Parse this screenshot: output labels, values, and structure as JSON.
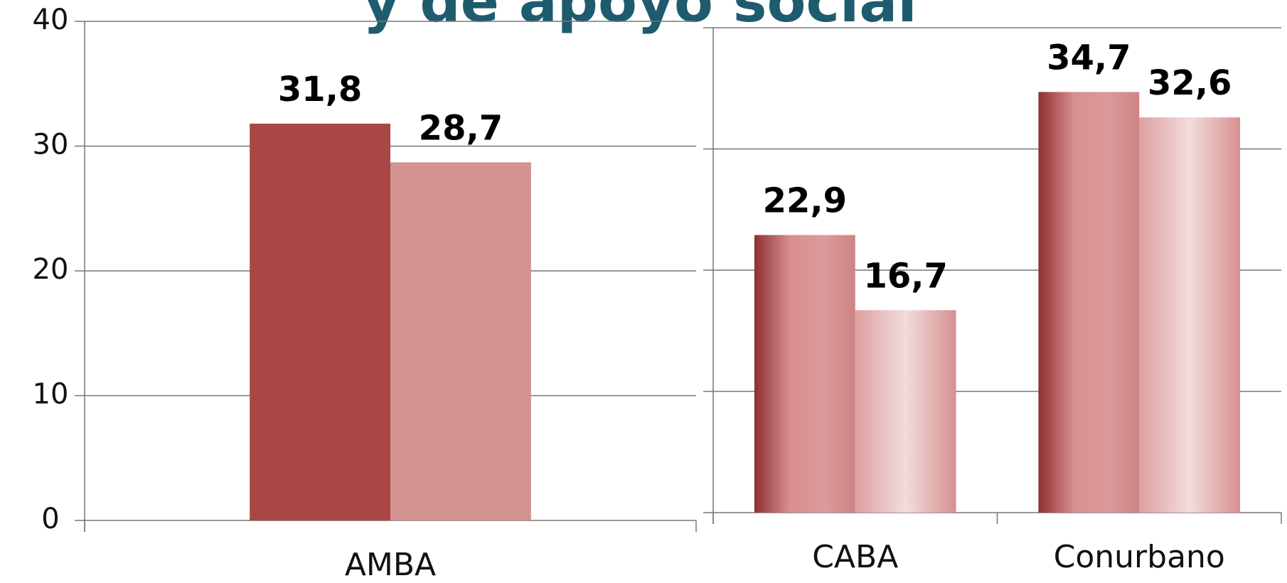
{
  "title": "y de apoyo social",
  "chart_data": [
    {
      "type": "bar",
      "categories": [
        "AMBA"
      ],
      "series": [
        {
          "color": "#a84744",
          "values": [
            31.8
          ],
          "value_labels": [
            "31,8"
          ]
        },
        {
          "color": "#d39391",
          "values": [
            28.7
          ],
          "value_labels": [
            "28,7"
          ]
        }
      ],
      "ylim": [
        0,
        40
      ],
      "yticks": [
        0,
        10,
        20,
        30,
        40
      ],
      "grid": true
    },
    {
      "type": "bar",
      "categories": [
        "CABA",
        "Conurbano"
      ],
      "series": [
        {
          "color": "#a84744",
          "values": [
            22.9,
            34.7
          ],
          "value_labels": [
            "22,9",
            "34,7"
          ]
        },
        {
          "color": "#d39391",
          "values": [
            16.7,
            32.6
          ],
          "value_labels": [
            "16,7",
            "32,6"
          ]
        }
      ],
      "ylim": [
        0,
        40
      ],
      "yticks": [
        0,
        10,
        20,
        30,
        40
      ],
      "grid": true,
      "gradient": true
    }
  ]
}
